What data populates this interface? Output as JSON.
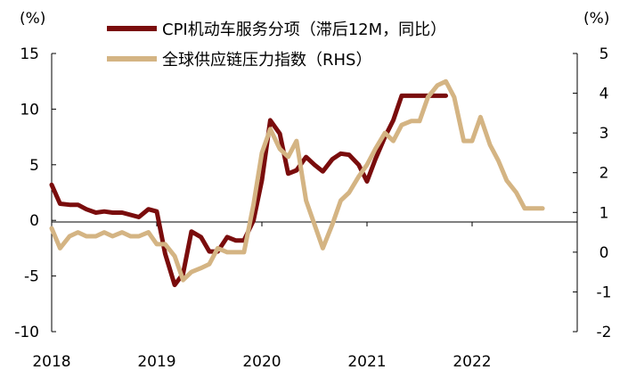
{
  "chart_data": {
    "type": "line",
    "left_axis": {
      "unit_label": "(%)",
      "ylim": [
        -10,
        15
      ],
      "ticks": [
        15,
        10,
        5,
        0,
        -5,
        -10
      ]
    },
    "right_axis": {
      "unit_label": "(%)",
      "ylim": [
        -2,
        5
      ],
      "ticks": [
        5,
        4,
        3,
        2,
        1,
        0,
        -1,
        -2
      ]
    },
    "x_axis": {
      "xlim": [
        2018.0,
        2023.0
      ],
      "ticks": [
        2018,
        2019,
        2020,
        2021,
        2022
      ],
      "tick_labels": [
        "2018",
        "2019",
        "2020",
        "2021",
        "2022"
      ]
    },
    "grid": false,
    "legend_position": "top",
    "series": [
      {
        "name": "CPI机动车服务分项（滞后12M，同比）",
        "axis": "left",
        "color": "#7a0c0c",
        "x": [
          2018.0,
          2018.08,
          2018.17,
          2018.25,
          2018.33,
          2018.42,
          2018.5,
          2018.58,
          2018.67,
          2018.75,
          2018.83,
          2018.92,
          2019.0,
          2019.08,
          2019.17,
          2019.25,
          2019.33,
          2019.42,
          2019.5,
          2019.58,
          2019.67,
          2019.75,
          2019.83,
          2019.92,
          2020.0,
          2020.08,
          2020.17,
          2020.25,
          2020.33,
          2020.42,
          2020.5,
          2020.58,
          2020.67,
          2020.75,
          2020.83,
          2020.92,
          2021.0,
          2021.08,
          2021.17,
          2021.25,
          2021.33,
          2021.42,
          2021.5,
          2021.58,
          2021.67,
          2021.75
        ],
        "y": [
          3.2,
          1.5,
          1.4,
          1.4,
          1.0,
          0.7,
          0.8,
          0.7,
          0.7,
          0.5,
          0.3,
          1.0,
          0.8,
          -3.0,
          -5.8,
          -4.8,
          -1.0,
          -1.5,
          -2.8,
          -2.8,
          -1.5,
          -1.8,
          -1.8,
          0.0,
          3.6,
          9.0,
          7.8,
          4.2,
          4.5,
          5.7,
          5.0,
          4.4,
          5.5,
          6.0,
          5.9,
          5.0,
          3.5,
          5.5,
          7.5,
          9.0,
          11.2,
          11.2,
          11.2,
          11.2,
          11.2,
          11.2
        ]
      },
      {
        "name": "全球供应链压力指数（RHS）",
        "axis": "right",
        "color": "#d4b483",
        "x": [
          2018.0,
          2018.08,
          2018.17,
          2018.25,
          2018.33,
          2018.42,
          2018.5,
          2018.58,
          2018.67,
          2018.75,
          2018.83,
          2018.92,
          2019.0,
          2019.08,
          2019.17,
          2019.25,
          2019.33,
          2019.42,
          2019.5,
          2019.58,
          2019.67,
          2019.75,
          2019.83,
          2019.92,
          2020.0,
          2020.08,
          2020.17,
          2020.25,
          2020.33,
          2020.42,
          2020.5,
          2020.58,
          2020.67,
          2020.75,
          2020.83,
          2020.92,
          2021.0,
          2021.08,
          2021.17,
          2021.25,
          2021.33,
          2021.42,
          2021.5,
          2021.58,
          2021.67,
          2021.75,
          2021.83,
          2021.92,
          2022.0,
          2022.08,
          2022.17,
          2022.25,
          2022.33,
          2022.42,
          2022.5,
          2022.58,
          2022.67
        ],
        "y": [
          0.6,
          0.1,
          0.4,
          0.5,
          0.4,
          0.4,
          0.5,
          0.4,
          0.5,
          0.4,
          0.4,
          0.5,
          0.2,
          0.2,
          -0.1,
          -0.7,
          -0.5,
          -0.4,
          -0.3,
          0.1,
          0.0,
          0.0,
          0.0,
          1.2,
          2.5,
          3.1,
          2.6,
          2.4,
          2.8,
          1.3,
          0.7,
          0.1,
          0.7,
          1.3,
          1.5,
          1.9,
          2.2,
          2.6,
          3.0,
          2.8,
          3.2,
          3.3,
          3.3,
          3.9,
          4.2,
          4.3,
          3.9,
          2.8,
          2.8,
          3.4,
          2.7,
          2.3,
          1.8,
          1.5,
          1.1,
          1.1,
          1.1
        ]
      }
    ]
  }
}
